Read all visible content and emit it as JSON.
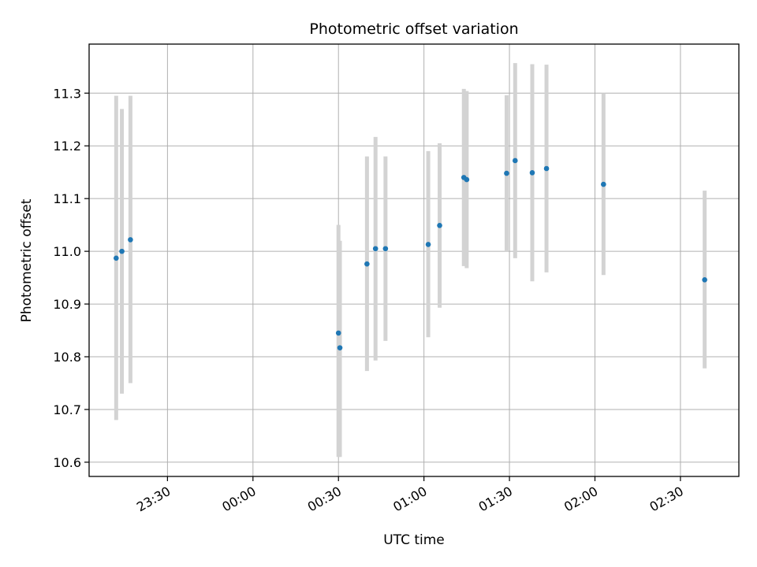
{
  "chart_data": {
    "type": "scatter",
    "title": "Photometric offset variation",
    "xlabel": "UTC time",
    "ylabel": "Photometric offset",
    "grid": true,
    "xlim": [
      "23:02:30",
      "02:50:30"
    ],
    "ylim": [
      10.573,
      11.393
    ],
    "x_ticks": [
      "23:30",
      "00:00",
      "00:30",
      "01:00",
      "01:30",
      "02:00",
      "02:30"
    ],
    "y_ticks": [
      "10.6",
      "10.7",
      "10.8",
      "10.9",
      "11.0",
      "11.1",
      "11.2",
      "11.3"
    ],
    "colors": {
      "point": "#1f77b4",
      "errorbar": "#d3d3d3",
      "grid": "#b0b0b0"
    },
    "points": [
      {
        "x": "23:12:00",
        "y": 10.987,
        "y_low": 10.68,
        "y_high": 11.295
      },
      {
        "x": "23:14:00",
        "y": 11.0,
        "y_low": 10.73,
        "y_high": 11.27
      },
      {
        "x": "23:17:00",
        "y": 11.022,
        "y_low": 10.75,
        "y_high": 11.295
      },
      {
        "x": "00:30:00",
        "y": 10.845,
        "y_low": 10.61,
        "y_high": 11.05
      },
      {
        "x": "00:30:30",
        "y": 10.817,
        "y_low": 10.61,
        "y_high": 11.02
      },
      {
        "x": "00:40:00",
        "y": 10.976,
        "y_low": 10.773,
        "y_high": 11.18
      },
      {
        "x": "00:43:00",
        "y": 11.005,
        "y_low": 10.793,
        "y_high": 11.217
      },
      {
        "x": "00:46:30",
        "y": 11.005,
        "y_low": 10.83,
        "y_high": 11.18
      },
      {
        "x": "01:01:30",
        "y": 11.013,
        "y_low": 10.837,
        "y_high": 11.19
      },
      {
        "x": "01:05:30",
        "y": 11.049,
        "y_low": 10.893,
        "y_high": 11.205
      },
      {
        "x": "01:14:00",
        "y": 11.14,
        "y_low": 10.972,
        "y_high": 11.308
      },
      {
        "x": "01:15:00",
        "y": 11.136,
        "y_low": 10.968,
        "y_high": 11.304
      },
      {
        "x": "01:29:00",
        "y": 11.148,
        "y_low": 11.0,
        "y_high": 11.296
      },
      {
        "x": "01:32:00",
        "y": 11.172,
        "y_low": 10.987,
        "y_high": 11.357
      },
      {
        "x": "01:38:00",
        "y": 11.149,
        "y_low": 10.943,
        "y_high": 11.355
      },
      {
        "x": "01:43:00",
        "y": 11.157,
        "y_low": 10.96,
        "y_high": 11.354
      },
      {
        "x": "02:03:00",
        "y": 11.127,
        "y_low": 10.955,
        "y_high": 11.3
      },
      {
        "x": "02:38:30",
        "y": 10.946,
        "y_low": 10.778,
        "y_high": 11.115
      }
    ]
  }
}
